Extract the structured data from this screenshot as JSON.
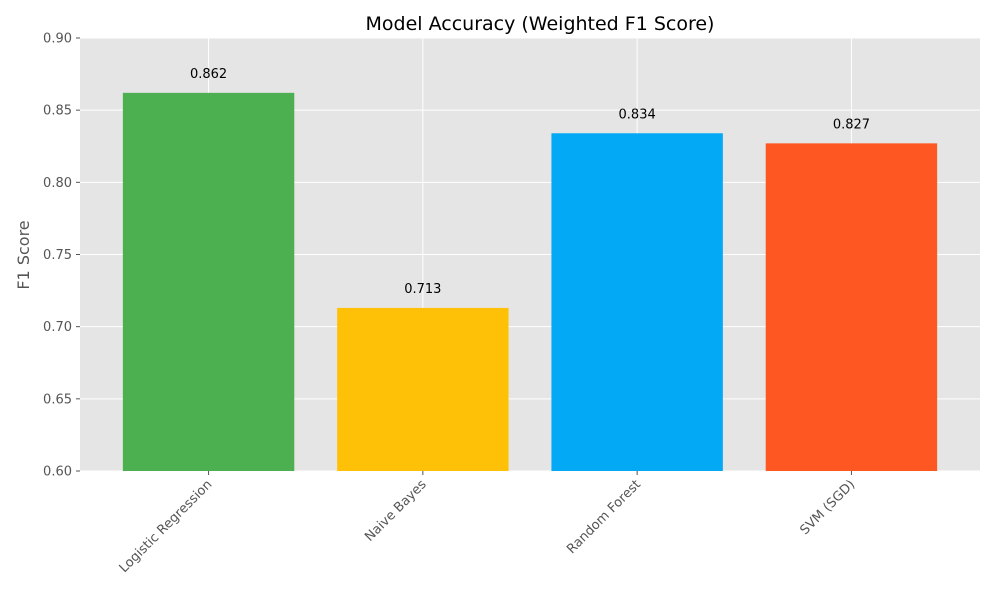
{
  "chart_data": {
    "type": "bar",
    "title": "Model Accuracy (Weighted F1 Score)",
    "xlabel": "",
    "ylabel": "F1 Score",
    "categories": [
      "Logistic Regression",
      "Naive Bayes",
      "Random Forest",
      "SVM (SGD)"
    ],
    "values": [
      0.862,
      0.713,
      0.834,
      0.827
    ],
    "value_labels": [
      "0.862",
      "0.713",
      "0.834",
      "0.827"
    ],
    "colors": [
      "#4caf50",
      "#ffc107",
      "#03a9f4",
      "#ff5722"
    ],
    "ylim": [
      0.6,
      0.9
    ],
    "yticks": [
      0.6,
      0.65,
      0.7,
      0.75,
      0.8,
      0.85,
      0.9
    ],
    "ytick_labels": [
      "0.60",
      "0.65",
      "0.70",
      "0.75",
      "0.80",
      "0.85",
      "0.90"
    ],
    "grid": true,
    "background": "#e5e5e5"
  }
}
